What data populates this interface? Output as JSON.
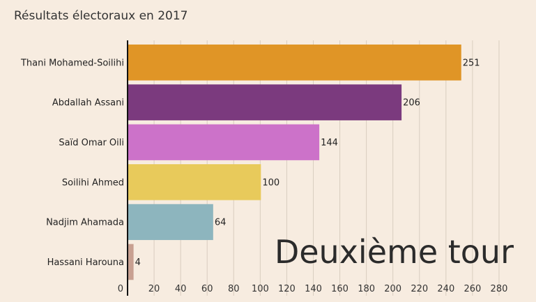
{
  "chart_data": {
    "type": "bar",
    "orientation": "horizontal",
    "title": "Résultats électoraux en 2017",
    "categories": [
      "Thani Mohamed-Soilihi",
      "Abdallah Assani",
      "Saïd Omar Oili",
      "Soilihi Ahmed",
      "Nadjim Ahamada",
      "Hassani Harouna"
    ],
    "values": [
      251,
      206,
      144,
      100,
      64,
      4
    ],
    "colors": [
      "#e09526",
      "#7b3a7e",
      "#cc72c9",
      "#e8ca5b",
      "#8db5be",
      "#c8a091"
    ],
    "xlim": [
      0,
      290
    ],
    "xticks": [
      0,
      20,
      40,
      60,
      80,
      100,
      120,
      140,
      160,
      180,
      200,
      220,
      240,
      260,
      280
    ],
    "grid": true,
    "annotation": "Deuxième tour"
  }
}
